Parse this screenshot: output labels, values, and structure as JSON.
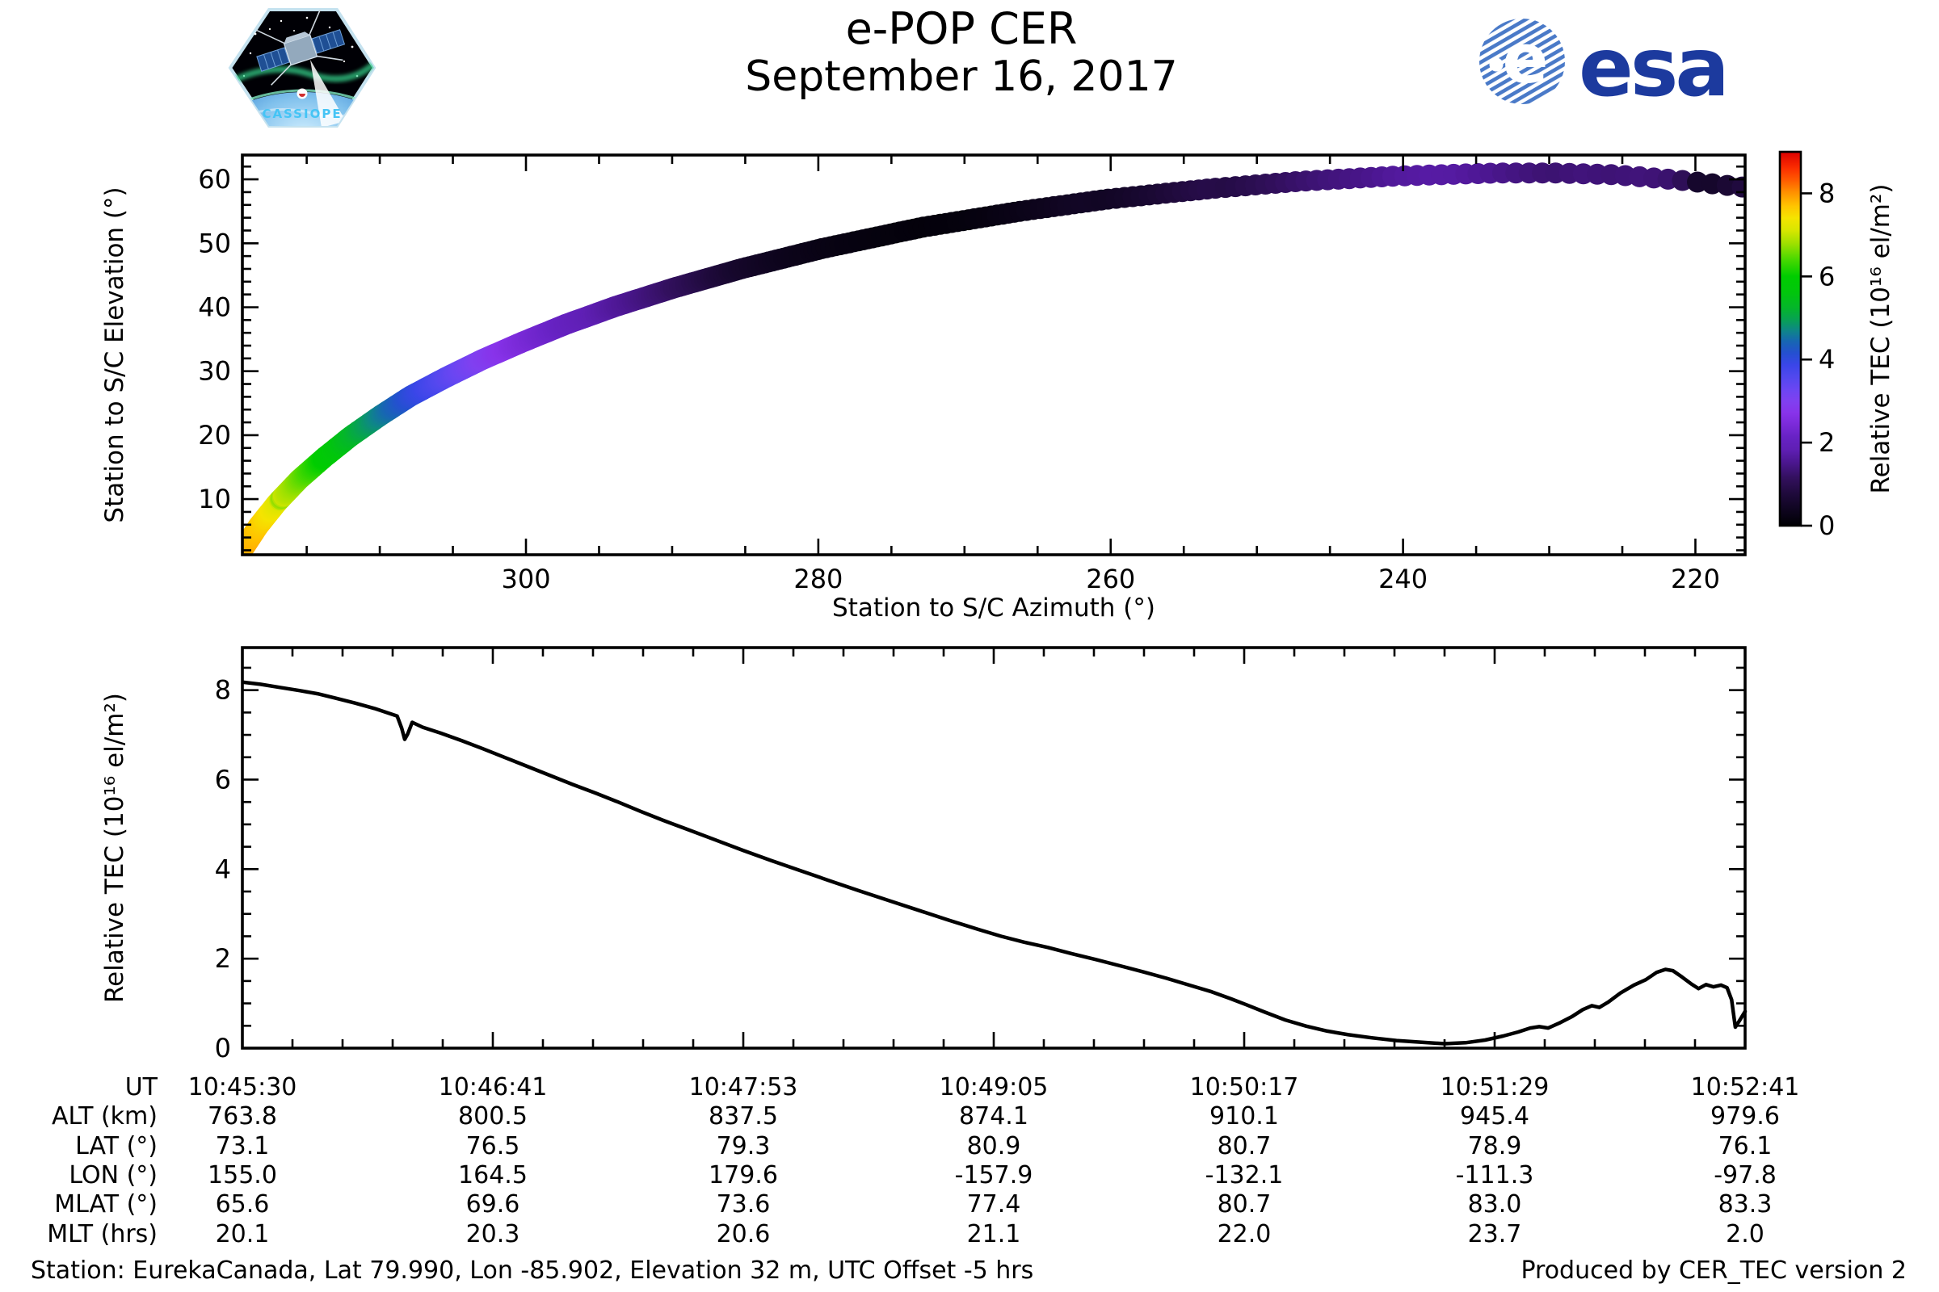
{
  "header": {
    "title": "e-POP CER",
    "date": "September 16, 2017"
  },
  "logos": {
    "cassiope_label": "CASSIOPE",
    "esa_wordmark": "esa",
    "esa_blue": "#1c3a9e",
    "esa_stripe_blue": "#4a7ac8",
    "cassiope_text_color": "#45c4f5"
  },
  "footer": {
    "station_info": "Station: EurekaCanada, Lat 79.990, Lon -85.902, Elevation 32 m, UTC Offset -5 hrs",
    "produced_by": "Produced by CER_TEC version 2"
  },
  "ephemeris_table": {
    "row_labels": [
      "UT",
      "ALT (km)",
      "LAT (°)",
      "LON (°)",
      "MLAT (°)",
      "MLT (hrs)"
    ],
    "rows": [
      [
        "10:45:30",
        "10:46:41",
        "10:47:53",
        "10:49:05",
        "10:50:17",
        "10:51:29",
        "10:52:41"
      ],
      [
        "763.8",
        "800.5",
        "837.5",
        "874.1",
        "910.1",
        "945.4",
        "979.6"
      ],
      [
        "73.1",
        "76.5",
        "79.3",
        "80.9",
        "80.7",
        "78.9",
        "76.1"
      ],
      [
        "155.0",
        "164.5",
        "179.6",
        "-157.9",
        "-132.1",
        "-111.3",
        "-97.8"
      ],
      [
        "65.6",
        "69.6",
        "73.6",
        "77.4",
        "80.7",
        "83.0",
        "83.3"
      ],
      [
        "20.1",
        "20.3",
        "20.6",
        "21.1",
        "22.0",
        "23.7",
        "2.0"
      ]
    ]
  },
  "chart_data": [
    {
      "type": "scatter",
      "title": "",
      "xlabel": "Station to S/C Azimuth (°)",
      "ylabel": "Station to S/C Elevation (°)",
      "x_axis_reversed": true,
      "xlim": [
        319.4,
        216.6
      ],
      "ylim": [
        1.3,
        63.8
      ],
      "xticks": [
        300,
        280,
        260,
        240,
        220
      ],
      "xminor_step": 5,
      "yticks": [
        10,
        20,
        30,
        40,
        50,
        60
      ],
      "yminor_step": 2,
      "marker_radius_px": 13,
      "track": {
        "f": [
          0.0,
          0.05,
          0.1,
          0.15,
          0.2,
          0.25,
          0.3,
          0.35,
          0.4,
          0.45,
          0.5,
          0.55,
          0.6,
          0.65,
          0.7,
          0.75,
          0.8,
          0.84,
          0.87,
          0.9,
          0.92,
          0.94,
          0.96,
          0.97,
          0.98,
          0.99,
          1.0
        ],
        "azimuth": [
          319.4,
          318.3,
          317.0,
          315.5,
          313.8,
          312.0,
          310.0,
          307.9,
          305.5,
          303.0,
          300.3,
          297.3,
          293.9,
          289.9,
          285.3,
          279.7,
          272.9,
          266.2,
          260.2,
          252.9,
          247.0,
          240.6,
          233.4,
          229.5,
          225.4,
          221.2,
          216.8
        ],
        "elevation": [
          2.0,
          5.8,
          9.5,
          13.1,
          16.5,
          19.8,
          23.0,
          26.1,
          29.0,
          31.8,
          34.5,
          37.3,
          40.1,
          43.0,
          46.0,
          49.2,
          52.5,
          55.0,
          56.9,
          58.6,
          59.7,
          60.5,
          61.0,
          61.0,
          60.7,
          59.9,
          58.8
        ]
      },
      "colorbar": {
        "label": "Relative TEC (10¹⁶ el/m²)",
        "ticks": [
          0,
          2,
          4,
          6,
          8
        ],
        "vmin": 0,
        "vmax": 9.0,
        "colormap": [
          [
            0.0,
            "#000004"
          ],
          [
            0.4,
            "#0f0520"
          ],
          [
            0.8,
            "#1f0a3c"
          ],
          [
            1.2,
            "#33105f"
          ],
          [
            1.6,
            "#4d1793"
          ],
          [
            1.9,
            "#5f1fb4"
          ],
          [
            2.2,
            "#6722c4"
          ],
          [
            2.5,
            "#7a2ad8"
          ],
          [
            2.8,
            "#8833ea"
          ],
          [
            3.1,
            "#8040f0"
          ],
          [
            3.4,
            "#6a46f2"
          ],
          [
            3.7,
            "#5148ee"
          ],
          [
            4.0,
            "#3a46e8"
          ],
          [
            4.3,
            "#2450d0"
          ],
          [
            4.6,
            "#1668b0"
          ],
          [
            4.85,
            "#0e8688"
          ],
          [
            5.1,
            "#089f58"
          ],
          [
            5.4,
            "#04b52c"
          ],
          [
            5.8,
            "#01c60c"
          ],
          [
            6.2,
            "#00cd00"
          ],
          [
            6.6,
            "#45d800"
          ],
          [
            7.0,
            "#9be000"
          ],
          [
            7.35,
            "#d8e600"
          ],
          [
            7.65,
            "#f5e400"
          ],
          [
            7.95,
            "#ffc400"
          ],
          [
            8.3,
            "#ff9000"
          ],
          [
            8.6,
            "#ff5a00"
          ],
          [
            8.9,
            "#fb2d00"
          ],
          [
            9.3,
            "#dc0000"
          ]
        ]
      }
    },
    {
      "type": "line",
      "title": "",
      "xlabel": "UT",
      "ylabel": "Relative TEC (10¹⁶ el/m²)",
      "xtick_labels": [
        "10:45:30",
        "10:46:41",
        "10:47:53",
        "10:49:05",
        "10:50:17",
        "10:51:29",
        "10:52:41"
      ],
      "xminor_per_interval": 5,
      "ylim": [
        0,
        8.95
      ],
      "yticks": [
        0,
        2,
        4,
        6,
        8
      ],
      "yminor_step": 0.5,
      "line_color": "#000000",
      "line_width": 4.5,
      "series": [
        {
          "name": "Relative TEC",
          "points": [
            [
              0.0,
              8.18
            ],
            [
              0.012,
              8.13
            ],
            [
              0.025,
              8.06
            ],
            [
              0.038,
              7.99
            ],
            [
              0.05,
              7.92
            ],
            [
              0.062,
              7.82
            ],
            [
              0.075,
              7.71
            ],
            [
              0.088,
              7.59
            ],
            [
              0.096,
              7.5
            ],
            [
              0.103,
              7.42
            ],
            [
              0.106,
              7.15
            ],
            [
              0.108,
              6.9
            ],
            [
              0.11,
              7.02
            ],
            [
              0.113,
              7.28
            ],
            [
              0.12,
              7.17
            ],
            [
              0.132,
              7.04
            ],
            [
              0.146,
              6.87
            ],
            [
              0.16,
              6.69
            ],
            [
              0.175,
              6.49
            ],
            [
              0.19,
              6.29
            ],
            [
              0.205,
              6.09
            ],
            [
              0.22,
              5.89
            ],
            [
              0.235,
              5.7
            ],
            [
              0.25,
              5.5
            ],
            [
              0.265,
              5.29
            ],
            [
              0.28,
              5.09
            ],
            [
              0.296,
              4.89
            ],
            [
              0.315,
              4.65
            ],
            [
              0.333,
              4.42
            ],
            [
              0.352,
              4.19
            ],
            [
              0.371,
              3.97
            ],
            [
              0.39,
              3.75
            ],
            [
              0.41,
              3.52
            ],
            [
              0.43,
              3.3
            ],
            [
              0.45,
              3.08
            ],
            [
              0.47,
              2.86
            ],
            [
              0.49,
              2.65
            ],
            [
              0.505,
              2.5
            ],
            [
              0.52,
              2.37
            ],
            [
              0.536,
              2.25
            ],
            [
              0.552,
              2.11
            ],
            [
              0.568,
              1.98
            ],
            [
              0.584,
              1.84
            ],
            [
              0.6,
              1.7
            ],
            [
              0.615,
              1.56
            ],
            [
              0.63,
              1.41
            ],
            [
              0.645,
              1.26
            ],
            [
              0.658,
              1.1
            ],
            [
              0.668,
              0.97
            ],
            [
              0.68,
              0.81
            ],
            [
              0.694,
              0.63
            ],
            [
              0.708,
              0.49
            ],
            [
              0.722,
              0.38
            ],
            [
              0.736,
              0.3
            ],
            [
              0.752,
              0.23
            ],
            [
              0.768,
              0.17
            ],
            [
              0.785,
              0.13
            ],
            [
              0.8,
              0.1
            ],
            [
              0.814,
              0.12
            ],
            [
              0.827,
              0.18
            ],
            [
              0.839,
              0.27
            ],
            [
              0.849,
              0.36
            ],
            [
              0.857,
              0.45
            ],
            [
              0.863,
              0.48
            ],
            [
              0.869,
              0.45
            ],
            [
              0.877,
              0.57
            ],
            [
              0.885,
              0.71
            ],
            [
              0.892,
              0.86
            ],
            [
              0.898,
              0.95
            ],
            [
              0.903,
              0.91
            ],
            [
              0.909,
              1.03
            ],
            [
              0.917,
              1.23
            ],
            [
              0.926,
              1.41
            ],
            [
              0.934,
              1.53
            ],
            [
              0.941,
              1.69
            ],
            [
              0.947,
              1.76
            ],
            [
              0.952,
              1.73
            ],
            [
              0.958,
              1.59
            ],
            [
              0.964,
              1.44
            ],
            [
              0.969,
              1.33
            ],
            [
              0.974,
              1.42
            ],
            [
              0.979,
              1.37
            ],
            [
              0.984,
              1.41
            ],
            [
              0.988,
              1.35
            ],
            [
              0.991,
              1.08
            ],
            [
              0.9935,
              0.47
            ],
            [
              0.996,
              0.6
            ],
            [
              1.0,
              0.82
            ]
          ]
        }
      ]
    }
  ]
}
